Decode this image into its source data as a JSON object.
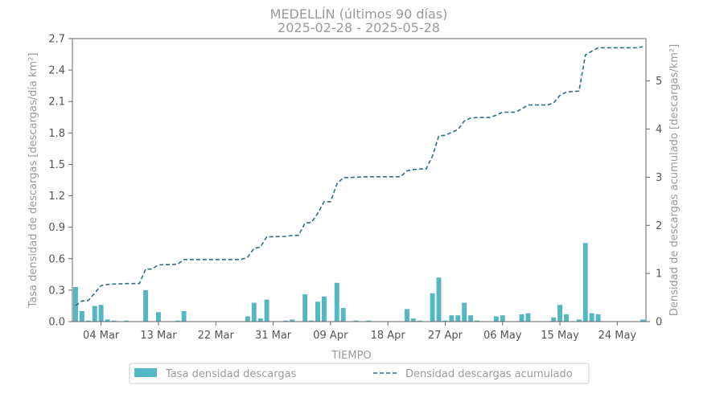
{
  "chart_data": {
    "type": "bar",
    "title": "MEDELLÍN (últimos 90 días)",
    "subtitle": "2025-02-28  -  2025-05-28",
    "xlabel": "TIEMPO",
    "ylabel_left": "Tasa densidad de descargas [descargas/día km²]",
    "ylabel_right": "Densidad de descargas acumulado [descargas/km²]",
    "ylim_left": [
      0,
      2.7
    ],
    "ylim_right": [
      0,
      5.88
    ],
    "yticks_left": [
      "0.0",
      "0.3",
      "0.6",
      "0.9",
      "1.2",
      "1.5",
      "1.8",
      "2.1",
      "2.4",
      "2.7"
    ],
    "yticks_right": [
      "0",
      "1",
      "2",
      "3",
      "4",
      "5"
    ],
    "x_start": "2025-02-28",
    "x_end": "2025-05-28",
    "xticks": [
      {
        "date": "2025-03-04",
        "label": "04 Mar"
      },
      {
        "date": "2025-03-13",
        "label": "13 Mar"
      },
      {
        "date": "2025-03-22",
        "label": "22 Mar"
      },
      {
        "date": "2025-03-31",
        "label": "31 Mar"
      },
      {
        "date": "2025-04-09",
        "label": "09 Apr"
      },
      {
        "date": "2025-04-18",
        "label": "18 Apr"
      },
      {
        "date": "2025-04-27",
        "label": "27 Apr"
      },
      {
        "date": "2025-05-06",
        "label": "06 May"
      },
      {
        "date": "2025-05-15",
        "label": "15 May"
      },
      {
        "date": "2025-05-24",
        "label": "24 May"
      }
    ],
    "grid": false,
    "legend_position": "bottom",
    "colors": {
      "bars": "#56b7c4",
      "line": "#2a7089",
      "axis": "#666666"
    },
    "series": [
      {
        "name": "Tasa densidad descargas",
        "kind": "bar",
        "points": [
          {
            "date": "2025-02-28",
            "value": 0.33
          },
          {
            "date": "2025-03-01",
            "value": 0.1
          },
          {
            "date": "2025-03-02",
            "value": 0.01
          },
          {
            "date": "2025-03-03",
            "value": 0.15
          },
          {
            "date": "2025-03-04",
            "value": 0.16
          },
          {
            "date": "2025-03-05",
            "value": 0.02
          },
          {
            "date": "2025-03-06",
            "value": 0.01
          },
          {
            "date": "2025-03-08",
            "value": 0.01
          },
          {
            "date": "2025-03-11",
            "value": 0.3
          },
          {
            "date": "2025-03-13",
            "value": 0.09
          },
          {
            "date": "2025-03-16",
            "value": 0.01
          },
          {
            "date": "2025-03-17",
            "value": 0.1
          },
          {
            "date": "2025-03-27",
            "value": 0.05
          },
          {
            "date": "2025-03-28",
            "value": 0.18
          },
          {
            "date": "2025-03-29",
            "value": 0.03
          },
          {
            "date": "2025-03-30",
            "value": 0.21
          },
          {
            "date": "2025-04-02",
            "value": 0.01
          },
          {
            "date": "2025-04-03",
            "value": 0.02
          },
          {
            "date": "2025-04-05",
            "value": 0.26
          },
          {
            "date": "2025-04-06",
            "value": 0.01
          },
          {
            "date": "2025-04-07",
            "value": 0.19
          },
          {
            "date": "2025-04-08",
            "value": 0.24
          },
          {
            "date": "2025-04-10",
            "value": 0.37
          },
          {
            "date": "2025-04-11",
            "value": 0.13
          },
          {
            "date": "2025-04-13",
            "value": 0.01
          },
          {
            "date": "2025-04-15",
            "value": 0.01
          },
          {
            "date": "2025-04-21",
            "value": 0.12
          },
          {
            "date": "2025-04-22",
            "value": 0.03
          },
          {
            "date": "2025-04-23",
            "value": 0.01
          },
          {
            "date": "2025-04-25",
            "value": 0.27
          },
          {
            "date": "2025-04-26",
            "value": 0.42
          },
          {
            "date": "2025-04-27",
            "value": 0.01
          },
          {
            "date": "2025-04-28",
            "value": 0.06
          },
          {
            "date": "2025-04-29",
            "value": 0.06
          },
          {
            "date": "2025-04-30",
            "value": 0.18
          },
          {
            "date": "2025-05-01",
            "value": 0.06
          },
          {
            "date": "2025-05-02",
            "value": 0.01
          },
          {
            "date": "2025-05-05",
            "value": 0.05
          },
          {
            "date": "2025-05-06",
            "value": 0.06
          },
          {
            "date": "2025-05-09",
            "value": 0.07
          },
          {
            "date": "2025-05-10",
            "value": 0.08
          },
          {
            "date": "2025-05-14",
            "value": 0.04
          },
          {
            "date": "2025-05-15",
            "value": 0.16
          },
          {
            "date": "2025-05-16",
            "value": 0.07
          },
          {
            "date": "2025-05-18",
            "value": 0.02
          },
          {
            "date": "2025-05-19",
            "value": 0.75
          },
          {
            "date": "2025-05-20",
            "value": 0.08
          },
          {
            "date": "2025-05-21",
            "value": 0.07
          },
          {
            "date": "2025-05-28",
            "value": 0.02
          }
        ]
      },
      {
        "name": "Densidad descargas acumulado",
        "kind": "line",
        "style": "dashed",
        "axis": "right",
        "points": [
          {
            "date": "2025-02-28",
            "value": 0.33
          },
          {
            "date": "2025-03-01",
            "value": 0.43
          },
          {
            "date": "2025-03-02",
            "value": 0.44
          },
          {
            "date": "2025-03-03",
            "value": 0.59
          },
          {
            "date": "2025-03-04",
            "value": 0.75
          },
          {
            "date": "2025-03-05",
            "value": 0.77
          },
          {
            "date": "2025-03-06",
            "value": 0.78
          },
          {
            "date": "2025-03-08",
            "value": 0.79
          },
          {
            "date": "2025-03-10",
            "value": 0.79
          },
          {
            "date": "2025-03-11",
            "value": 1.09
          },
          {
            "date": "2025-03-12",
            "value": 1.09
          },
          {
            "date": "2025-03-13",
            "value": 1.18
          },
          {
            "date": "2025-03-16",
            "value": 1.19
          },
          {
            "date": "2025-03-17",
            "value": 1.29
          },
          {
            "date": "2025-03-26",
            "value": 1.29
          },
          {
            "date": "2025-03-27",
            "value": 1.34
          },
          {
            "date": "2025-03-28",
            "value": 1.52
          },
          {
            "date": "2025-03-29",
            "value": 1.55
          },
          {
            "date": "2025-03-30",
            "value": 1.76
          },
          {
            "date": "2025-04-02",
            "value": 1.77
          },
          {
            "date": "2025-04-03",
            "value": 1.79
          },
          {
            "date": "2025-04-04",
            "value": 1.79
          },
          {
            "date": "2025-04-05",
            "value": 2.05
          },
          {
            "date": "2025-04-06",
            "value": 2.06
          },
          {
            "date": "2025-04-07",
            "value": 2.25
          },
          {
            "date": "2025-04-08",
            "value": 2.49
          },
          {
            "date": "2025-04-09",
            "value": 2.49
          },
          {
            "date": "2025-04-10",
            "value": 2.86
          },
          {
            "date": "2025-04-11",
            "value": 2.99
          },
          {
            "date": "2025-04-13",
            "value": 3.0
          },
          {
            "date": "2025-04-15",
            "value": 3.01
          },
          {
            "date": "2025-04-20",
            "value": 3.01
          },
          {
            "date": "2025-04-21",
            "value": 3.13
          },
          {
            "date": "2025-04-22",
            "value": 3.16
          },
          {
            "date": "2025-04-23",
            "value": 3.17
          },
          {
            "date": "2025-04-24",
            "value": 3.17
          },
          {
            "date": "2025-04-25",
            "value": 3.44
          },
          {
            "date": "2025-04-26",
            "value": 3.86
          },
          {
            "date": "2025-04-27",
            "value": 3.87
          },
          {
            "date": "2025-04-28",
            "value": 3.93
          },
          {
            "date": "2025-04-29",
            "value": 3.99
          },
          {
            "date": "2025-04-30",
            "value": 4.17
          },
          {
            "date": "2025-05-01",
            "value": 4.23
          },
          {
            "date": "2025-05-02",
            "value": 4.24
          },
          {
            "date": "2025-05-04",
            "value": 4.24
          },
          {
            "date": "2025-05-05",
            "value": 4.29
          },
          {
            "date": "2025-05-06",
            "value": 4.35
          },
          {
            "date": "2025-05-08",
            "value": 4.35
          },
          {
            "date": "2025-05-09",
            "value": 4.42
          },
          {
            "date": "2025-05-10",
            "value": 4.5
          },
          {
            "date": "2025-05-13",
            "value": 4.5
          },
          {
            "date": "2025-05-14",
            "value": 4.54
          },
          {
            "date": "2025-05-15",
            "value": 4.7
          },
          {
            "date": "2025-05-16",
            "value": 4.77
          },
          {
            "date": "2025-05-18",
            "value": 4.79
          },
          {
            "date": "2025-05-19",
            "value": 5.54
          },
          {
            "date": "2025-05-20",
            "value": 5.62
          },
          {
            "date": "2025-05-21",
            "value": 5.69
          },
          {
            "date": "2025-05-27",
            "value": 5.69
          },
          {
            "date": "2025-05-28",
            "value": 5.71
          }
        ]
      }
    ]
  }
}
